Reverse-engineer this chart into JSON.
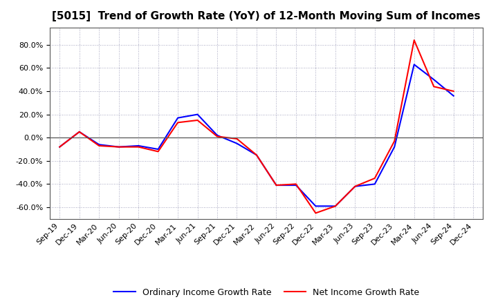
{
  "title": "[5015]  Trend of Growth Rate (YoY) of 12-Month Moving Sum of Incomes",
  "x_labels": [
    "Sep-19",
    "Dec-19",
    "Mar-20",
    "Jun-20",
    "Sep-20",
    "Dec-20",
    "Mar-21",
    "Jun-21",
    "Sep-21",
    "Dec-21",
    "Mar-22",
    "Jun-22",
    "Sep-22",
    "Dec-22",
    "Mar-23",
    "Jun-23",
    "Sep-23",
    "Dec-23",
    "Mar-24",
    "Jun-24",
    "Sep-24",
    "Dec-24"
  ],
  "ordinary_income": [
    -0.08,
    0.05,
    -0.06,
    -0.08,
    -0.07,
    -0.1,
    0.17,
    0.2,
    0.02,
    -0.05,
    -0.15,
    -0.41,
    -0.41,
    -0.59,
    -0.59,
    -0.42,
    -0.4,
    -0.08,
    0.63,
    0.5,
    0.36,
    null
  ],
  "net_income": [
    -0.08,
    0.05,
    -0.07,
    -0.08,
    -0.08,
    -0.12,
    0.13,
    0.15,
    0.01,
    -0.01,
    -0.15,
    -0.41,
    -0.4,
    -0.65,
    -0.59,
    -0.42,
    -0.35,
    -0.03,
    0.84,
    0.44,
    0.4,
    null
  ],
  "ordinary_color": "#0000FF",
  "net_color": "#FF0000",
  "background_color": "#FFFFFF",
  "plot_bg_color": "#FFFFFF",
  "grid_color": "#8888AA",
  "ylim": [
    -0.7,
    0.95
  ],
  "yticks": [
    -0.6,
    -0.4,
    -0.2,
    0.0,
    0.2,
    0.4,
    0.6,
    0.8
  ],
  "legend_ordinary": "Ordinary Income Growth Rate",
  "legend_net": "Net Income Growth Rate",
  "line_width": 1.5,
  "title_fontsize": 11,
  "tick_fontsize": 8,
  "legend_fontsize": 9
}
